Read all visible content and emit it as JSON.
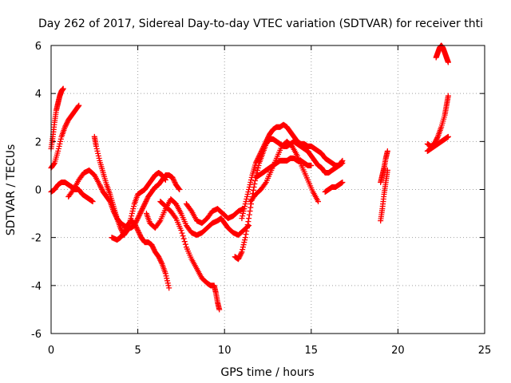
{
  "chart_data": {
    "type": "scatter",
    "title": "Day 262 of 2017, Sidereal Day-to-day VTEC variation (SDTVAR) for receiver thti",
    "xlabel": "GPS time / hours",
    "ylabel": "SDTVAR / TECUs",
    "xlim": [
      0,
      25
    ],
    "ylim": [
      -6,
      6
    ],
    "xticks": [
      "0",
      "5",
      "10",
      "15",
      "20",
      "25"
    ],
    "yticks": [
      "-6",
      "-4",
      "-2",
      "0",
      "2",
      "4",
      "6"
    ],
    "grid": true,
    "legend": "none",
    "marker": "plus",
    "color": "#ff0000",
    "series": [
      {
        "x": [
          0.0,
          0.1,
          0.2,
          0.3,
          0.4,
          0.5,
          0.6,
          0.7
        ],
        "y": [
          1.7,
          2.2,
          2.8,
          3.3,
          3.6,
          3.9,
          4.1,
          4.2
        ]
      },
      {
        "x": [
          0.0,
          0.2,
          0.4,
          0.6,
          0.8,
          1.0,
          1.2,
          1.4,
          1.6
        ],
        "y": [
          0.9,
          1.1,
          1.6,
          2.2,
          2.6,
          2.9,
          3.1,
          3.3,
          3.5
        ]
      },
      {
        "x": [
          0.0,
          0.2,
          0.4,
          0.6,
          0.8,
          1.0,
          1.2,
          1.4,
          1.6,
          1.8,
          2.0,
          2.2,
          2.4
        ],
        "y": [
          -0.1,
          0.0,
          0.2,
          0.3,
          0.3,
          0.2,
          0.1,
          0.0,
          0.0,
          -0.2,
          -0.3,
          -0.4,
          -0.5
        ]
      },
      {
        "x": [
          1.0,
          1.3,
          1.6,
          1.9,
          2.2,
          2.5,
          2.8,
          3.0,
          3.2,
          3.4,
          3.6,
          3.8,
          4.0,
          4.2,
          4.4,
          4.6,
          4.8,
          5.0,
          5.2,
          5.4,
          5.6,
          5.8,
          6.0,
          6.2,
          6.4,
          6.6,
          6.8,
          7.0,
          7.2,
          7.4
        ],
        "y": [
          -0.3,
          0.0,
          0.4,
          0.7,
          0.8,
          0.6,
          0.2,
          -0.1,
          -0.3,
          -0.5,
          -0.9,
          -1.2,
          -1.4,
          -1.5,
          -1.6,
          -1.6,
          -1.5,
          -1.2,
          -0.9,
          -0.6,
          -0.3,
          -0.1,
          0.1,
          0.2,
          0.4,
          0.6,
          0.6,
          0.5,
          0.2,
          0.0
        ]
      },
      {
        "x": [
          2.5,
          2.6,
          2.8,
          3.0,
          3.2,
          3.4,
          3.6,
          3.8,
          4.0,
          4.2,
          4.4,
          4.6,
          4.8,
          5.0,
          5.2,
          5.4,
          5.6,
          5.8,
          6.0,
          6.2,
          6.4,
          6.6
        ],
        "y": [
          2.2,
          1.8,
          1.2,
          0.7,
          0.2,
          -0.2,
          -0.7,
          -1.2,
          -1.6,
          -1.9,
          -1.7,
          -1.2,
          -0.6,
          -0.2,
          -0.1,
          0.0,
          0.2,
          0.4,
          0.6,
          0.7,
          0.6,
          0.4
        ]
      },
      {
        "x": [
          3.5,
          3.8,
          4.0,
          4.2,
          4.4,
          4.6,
          4.8,
          5.0,
          5.2,
          5.4,
          5.6,
          5.8,
          6.0,
          6.2,
          6.4,
          6.6,
          6.8
        ],
        "y": [
          -2.0,
          -2.1,
          -2.0,
          -1.8,
          -1.5,
          -1.3,
          -1.4,
          -1.7,
          -2.0,
          -2.2,
          -2.2,
          -2.3,
          -2.6,
          -2.8,
          -3.1,
          -3.5,
          -4.1
        ]
      },
      {
        "x": [
          5.5,
          5.7,
          6.0,
          6.3,
          6.6,
          6.9,
          7.2,
          7.5,
          7.8,
          8.1,
          8.4,
          8.7,
          9.0,
          9.3,
          9.6,
          9.8,
          10.0,
          10.2,
          10.5,
          10.8,
          11.1,
          11.4
        ],
        "y": [
          -1.0,
          -1.4,
          -1.6,
          -1.3,
          -0.8,
          -0.4,
          -0.6,
          -1.0,
          -1.5,
          -1.8,
          -1.9,
          -1.8,
          -1.6,
          -1.4,
          -1.3,
          -1.2,
          -1.4,
          -1.6,
          -1.8,
          -1.9,
          -1.7,
          -1.5
        ]
      },
      {
        "x": [
          6.3,
          6.6,
          6.9,
          7.2,
          7.5,
          7.8,
          8.1,
          8.4,
          8.7,
          9.0,
          9.2,
          9.4,
          9.5,
          9.6,
          9.7
        ],
        "y": [
          -0.5,
          -0.7,
          -0.9,
          -1.2,
          -1.7,
          -2.4,
          -2.9,
          -3.3,
          -3.7,
          -3.9,
          -4.0,
          -4.0,
          -4.3,
          -4.7,
          -5.0
        ]
      },
      {
        "x": [
          7.8,
          8.1,
          8.4,
          8.7,
          9.0,
          9.3,
          9.6,
          9.9,
          10.2,
          10.5,
          10.8,
          11.1
        ],
        "y": [
          -0.6,
          -0.9,
          -1.3,
          -1.4,
          -1.2,
          -0.9,
          -0.8,
          -1.0,
          -1.2,
          -1.1,
          -0.9,
          -0.8
        ]
      },
      {
        "x": [
          10.6,
          10.8,
          11.0,
          11.2,
          11.4,
          11.6,
          11.8,
          12.0,
          12.2,
          12.4,
          12.6,
          12.8,
          13.0,
          13.2,
          13.4,
          13.6,
          13.8,
          14.0,
          14.2,
          14.4,
          14.6,
          14.8,
          15.0,
          15.2,
          15.4,
          15.6,
          15.8,
          16.0,
          16.2,
          16.4,
          16.6,
          16.8
        ],
        "y": [
          -2.8,
          -2.9,
          -2.6,
          -2.0,
          -1.2,
          -0.3,
          0.5,
          1.1,
          1.5,
          1.9,
          2.1,
          2.1,
          2.0,
          1.9,
          1.8,
          1.8,
          1.9,
          2.0,
          1.9,
          1.8,
          1.7,
          1.6,
          1.4,
          1.2,
          1.0,
          0.9,
          0.7,
          0.7,
          0.8,
          0.9,
          1.0,
          1.1
        ]
      },
      {
        "x": [
          11.0,
          11.2,
          11.4,
          11.6,
          11.8,
          12.0,
          12.2,
          12.4,
          12.6,
          12.8,
          13.0,
          13.2,
          13.4,
          13.6,
          13.8,
          14.0,
          14.2,
          14.4,
          14.6,
          14.8,
          15.0,
          15.2,
          15.4,
          15.6,
          15.8,
          16.0,
          16.2,
          16.4,
          16.6,
          16.8
        ],
        "y": [
          -1.2,
          -0.6,
          0.0,
          0.6,
          1.1,
          1.4,
          1.7,
          2.0,
          2.3,
          2.5,
          2.6,
          2.6,
          2.7,
          2.6,
          2.4,
          2.2,
          2.0,
          1.9,
          1.9,
          1.8,
          1.8,
          1.7,
          1.6,
          1.5,
          1.3,
          1.2,
          1.1,
          1.0,
          1.0,
          1.2
        ]
      },
      {
        "x": [
          11.5,
          11.8,
          12.1,
          12.4,
          12.7,
          13.0,
          13.3,
          13.6,
          13.9,
          14.2,
          14.5,
          14.8,
          15.1,
          15.4
        ],
        "y": [
          -0.5,
          -0.2,
          0.0,
          0.3,
          0.8,
          1.3,
          1.8,
          2.0,
          1.8,
          1.4,
          0.9,
          0.4,
          -0.1,
          -0.5
        ]
      },
      {
        "x": [
          11.8,
          12.0,
          12.2,
          12.4,
          12.6,
          12.8,
          13.0,
          13.2,
          13.4,
          13.6,
          13.8,
          14.0,
          14.2,
          14.4,
          14.6,
          14.8,
          15.0
        ],
        "y": [
          0.5,
          0.6,
          0.7,
          0.8,
          0.9,
          1.0,
          1.1,
          1.2,
          1.2,
          1.2,
          1.3,
          1.3,
          1.2,
          1.2,
          1.1,
          1.0,
          1.0
        ]
      },
      {
        "x": [
          15.8,
          16.0,
          16.2,
          16.4,
          16.6,
          16.8
        ],
        "y": [
          -0.1,
          0.0,
          0.1,
          0.1,
          0.2,
          0.3
        ]
      },
      {
        "x": [
          19.0,
          19.1,
          19.2,
          19.3,
          19.4
        ],
        "y": [
          -1.3,
          -0.8,
          -0.2,
          0.3,
          0.8
        ]
      },
      {
        "x": [
          19.0,
          19.1,
          19.2,
          19.3,
          19.4
        ],
        "y": [
          0.3,
          0.6,
          0.9,
          1.3,
          1.6
        ]
      },
      {
        "x": [
          21.7,
          21.9,
          22.1,
          22.3,
          22.5,
          22.7,
          22.9
        ],
        "y": [
          1.6,
          1.7,
          1.8,
          1.9,
          2.0,
          2.1,
          2.2
        ]
      },
      {
        "x": [
          21.7,
          21.9,
          22.1,
          22.3,
          22.5,
          22.7,
          22.8,
          22.9
        ],
        "y": [
          1.9,
          1.8,
          1.9,
          2.2,
          2.6,
          3.1,
          3.5,
          3.9
        ]
      },
      {
        "x": [
          22.2,
          22.3,
          22.4,
          22.5,
          22.6,
          22.7,
          22.8,
          22.9
        ],
        "y": [
          5.5,
          5.7,
          5.9,
          6.0,
          5.9,
          5.7,
          5.5,
          5.3
        ]
      }
    ]
  }
}
